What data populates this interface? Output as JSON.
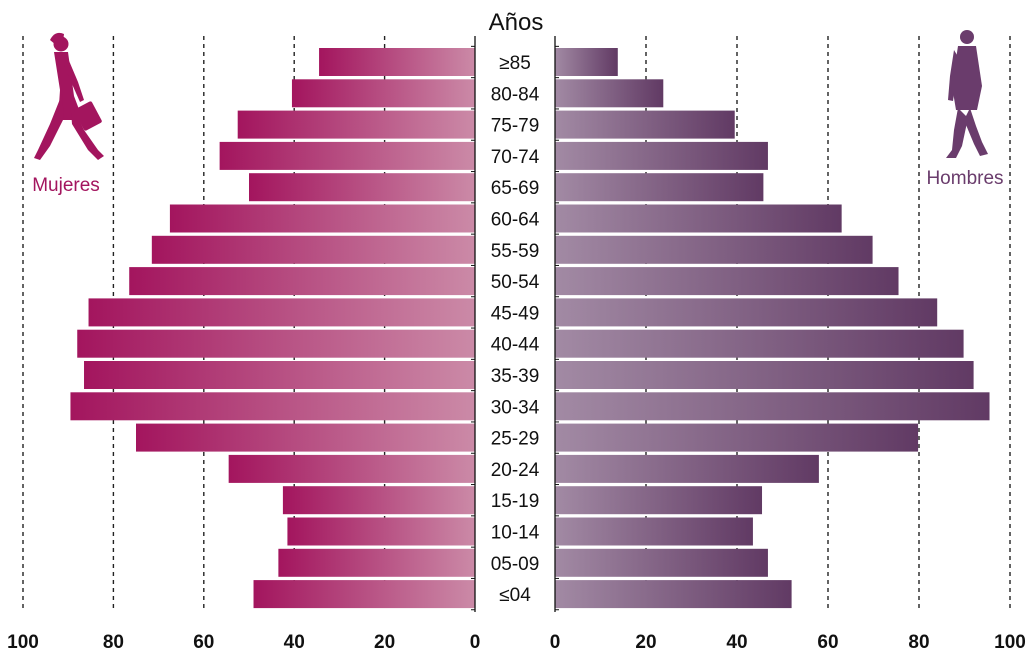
{
  "chart_data": {
    "type": "bar",
    "subtype": "population-pyramid",
    "title": "Años",
    "xlim": [
      0,
      100
    ],
    "ticks": [
      "0",
      "20",
      "40",
      "60",
      "80",
      "100"
    ],
    "grid": "dashed vertical",
    "categories": [
      "≥85",
      "80-84",
      "75-79",
      "70-74",
      "65-69",
      "60-64",
      "55-59",
      "50-54",
      "45-49",
      "40-44",
      "35-39",
      "30-34",
      "25-29",
      "20-24",
      "15-19",
      "10-14",
      "05-09",
      "≤04"
    ],
    "series": [
      {
        "name": "Mujeres",
        "side": "left",
        "color": "#a3155e",
        "color_light": "#cb8aa7",
        "values": [
          34.5,
          40.5,
          52.5,
          56.5,
          50.0,
          67.5,
          71.5,
          76.5,
          85.5,
          88.0,
          86.5,
          89.5,
          75.0,
          54.5,
          42.5,
          41.5,
          43.5,
          49.0
        ]
      },
      {
        "name": "Hombres",
        "side": "right",
        "color": "#613a64",
        "color_light": "#a28aa4",
        "values": [
          13.8,
          23.8,
          39.5,
          46.8,
          45.8,
          63.0,
          69.8,
          75.5,
          84.0,
          89.8,
          92.0,
          95.5,
          79.8,
          58.0,
          45.5,
          43.5,
          46.8,
          52.0
        ]
      }
    ]
  },
  "figure": {
    "female_color": "#a3155e",
    "male_color": "#6a3c6c",
    "female_icon": "walking-woman-icon",
    "male_icon": "walking-man-icon"
  }
}
